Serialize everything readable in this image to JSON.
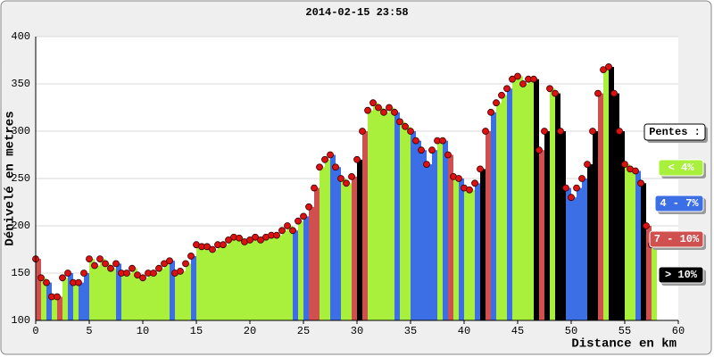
{
  "chart_data": {
    "type": "profile",
    "title": "2014-02-15 23:58",
    "x_label": "Distance en km",
    "y_label": "Dénivelé en metres",
    "xlim": [
      0,
      60
    ],
    "ylim": [
      100,
      400
    ],
    "xticks": [
      0,
      5,
      10,
      15,
      20,
      25,
      30,
      35,
      40,
      45,
      50,
      55,
      60
    ],
    "yticks": [
      100,
      150,
      200,
      250,
      300,
      350,
      400
    ],
    "grid": true,
    "marker_color": "#e01010",
    "legend": {
      "title": "Pentes :",
      "entries": [
        {
          "label": "< 4%",
          "color": "#a8f03c"
        },
        {
          "label": "4 - 7%",
          "color": "#3c6ee6"
        },
        {
          "label": "7 - 10%",
          "color": "#d05050"
        },
        {
          "label": "> 10%",
          "color": "#000000"
        }
      ]
    },
    "x": [
      0,
      0.5,
      1,
      1.5,
      2,
      2.5,
      3,
      3.5,
      4,
      4.5,
      5,
      5.5,
      6,
      6.5,
      7,
      7.5,
      8,
      8.5,
      9,
      9.5,
      10,
      10.5,
      11,
      11.5,
      12,
      12.5,
      13,
      13.5,
      14,
      14.5,
      15,
      15.5,
      16,
      16.5,
      17,
      17.5,
      18,
      18.5,
      19,
      19.5,
      20,
      20.5,
      21,
      21.5,
      22,
      22.5,
      23,
      23.5,
      24,
      24.5,
      25,
      25.5,
      26,
      26.5,
      27,
      27.5,
      28,
      28.5,
      29,
      29.5,
      30,
      30.5,
      31,
      31.5,
      32,
      32.5,
      33,
      33.5,
      34,
      34.5,
      35,
      35.5,
      36,
      36.5,
      37,
      37.5,
      38,
      38.5,
      39,
      39.5,
      40,
      40.5,
      41,
      41.5,
      42,
      42.5,
      43,
      43.5,
      44,
      44.5,
      45,
      45.5,
      46,
      46.5,
      47,
      47.5,
      48,
      48.5,
      49,
      49.5,
      50,
      50.5,
      51,
      51.5,
      52,
      52.5,
      53,
      53.5,
      54,
      54.5,
      55,
      55.5,
      56,
      56.5,
      57,
      57.5
    ],
    "values": [
      165,
      145,
      140,
      125,
      125,
      145,
      150,
      140,
      140,
      150,
      165,
      158,
      165,
      160,
      155,
      160,
      150,
      150,
      155,
      148,
      145,
      150,
      150,
      155,
      160,
      163,
      150,
      152,
      160,
      168,
      180,
      178,
      178,
      175,
      180,
      180,
      185,
      188,
      187,
      183,
      185,
      188,
      185,
      188,
      190,
      190,
      195,
      200,
      195,
      205,
      210,
      220,
      240,
      262,
      270,
      275,
      262,
      250,
      245,
      252,
      270,
      300,
      322,
      330,
      325,
      320,
      325,
      320,
      310,
      305,
      300,
      290,
      280,
      265,
      280,
      290,
      290,
      275,
      252,
      250,
      240,
      238,
      245,
      260,
      300,
      320,
      330,
      338,
      345,
      355,
      358,
      350,
      355,
      355,
      280,
      300,
      345,
      340,
      300,
      240,
      230,
      240,
      250,
      265,
      300,
      340,
      365,
      368,
      340,
      300,
      265,
      260,
      258,
      245,
      200,
      180
    ],
    "colors": [
      "#d05050",
      "#a8f03c",
      "#3c6ee6",
      "#a8f03c",
      "#d05050",
      "#a8f03c",
      "#3c6ee6",
      "#a8f03c",
      "#3c6ee6",
      "#3c6ee6",
      "#a8f03c",
      "#a8f03c",
      "#a8f03c",
      "#a8f03c",
      "#a8f03c",
      "#3c6ee6",
      "#a8f03c",
      "#a8f03c",
      "#a8f03c",
      "#a8f03c",
      "#a8f03c",
      "#a8f03c",
      "#a8f03c",
      "#a8f03c",
      "#a8f03c",
      "#3c6ee6",
      "#a8f03c",
      "#a8f03c",
      "#a8f03c",
      "#3c6ee6",
      "#a8f03c",
      "#a8f03c",
      "#a8f03c",
      "#a8f03c",
      "#a8f03c",
      "#a8f03c",
      "#a8f03c",
      "#a8f03c",
      "#a8f03c",
      "#a8f03c",
      "#a8f03c",
      "#a8f03c",
      "#a8f03c",
      "#a8f03c",
      "#a8f03c",
      "#a8f03c",
      "#a8f03c",
      "#a8f03c",
      "#3c6ee6",
      "#a8f03c",
      "#3c6ee6",
      "#d05050",
      "#d05050",
      "#a8f03c",
      "#a8f03c",
      "#3c6ee6",
      "#3c6ee6",
      "#a8f03c",
      "#a8f03c",
      "#d05050",
      "#000000",
      "#d05050",
      "#a8f03c",
      "#a8f03c",
      "#a8f03c",
      "#a8f03c",
      "#a8f03c",
      "#3c6ee6",
      "#a8f03c",
      "#a8f03c",
      "#3c6ee6",
      "#3c6ee6",
      "#3c6ee6",
      "#3c6ee6",
      "#3c6ee6",
      "#a8f03c",
      "#3c6ee6",
      "#d05050",
      "#a8f03c",
      "#3c6ee6",
      "#a8f03c",
      "#a8f03c",
      "#3c6ee6",
      "#000000",
      "#d05050",
      "#3c6ee6",
      "#a8f03c",
      "#a8f03c",
      "#3c6ee6",
      "#a8f03c",
      "#a8f03c",
      "#a8f03c",
      "#a8f03c",
      "#000000",
      "#d05050",
      "#000000",
      "#a8f03c",
      "#000000",
      "#000000",
      "#3c6ee6",
      "#3c6ee6",
      "#3c6ee6",
      "#3c6ee6",
      "#000000",
      "#000000",
      "#d05050",
      "#a8f03c",
      "#000000",
      "#000000",
      "#000000",
      "#a8f03c",
      "#a8f03c",
      "#3c6ee6",
      "#000000",
      "#d05050",
      "#a8f03c"
    ]
  }
}
